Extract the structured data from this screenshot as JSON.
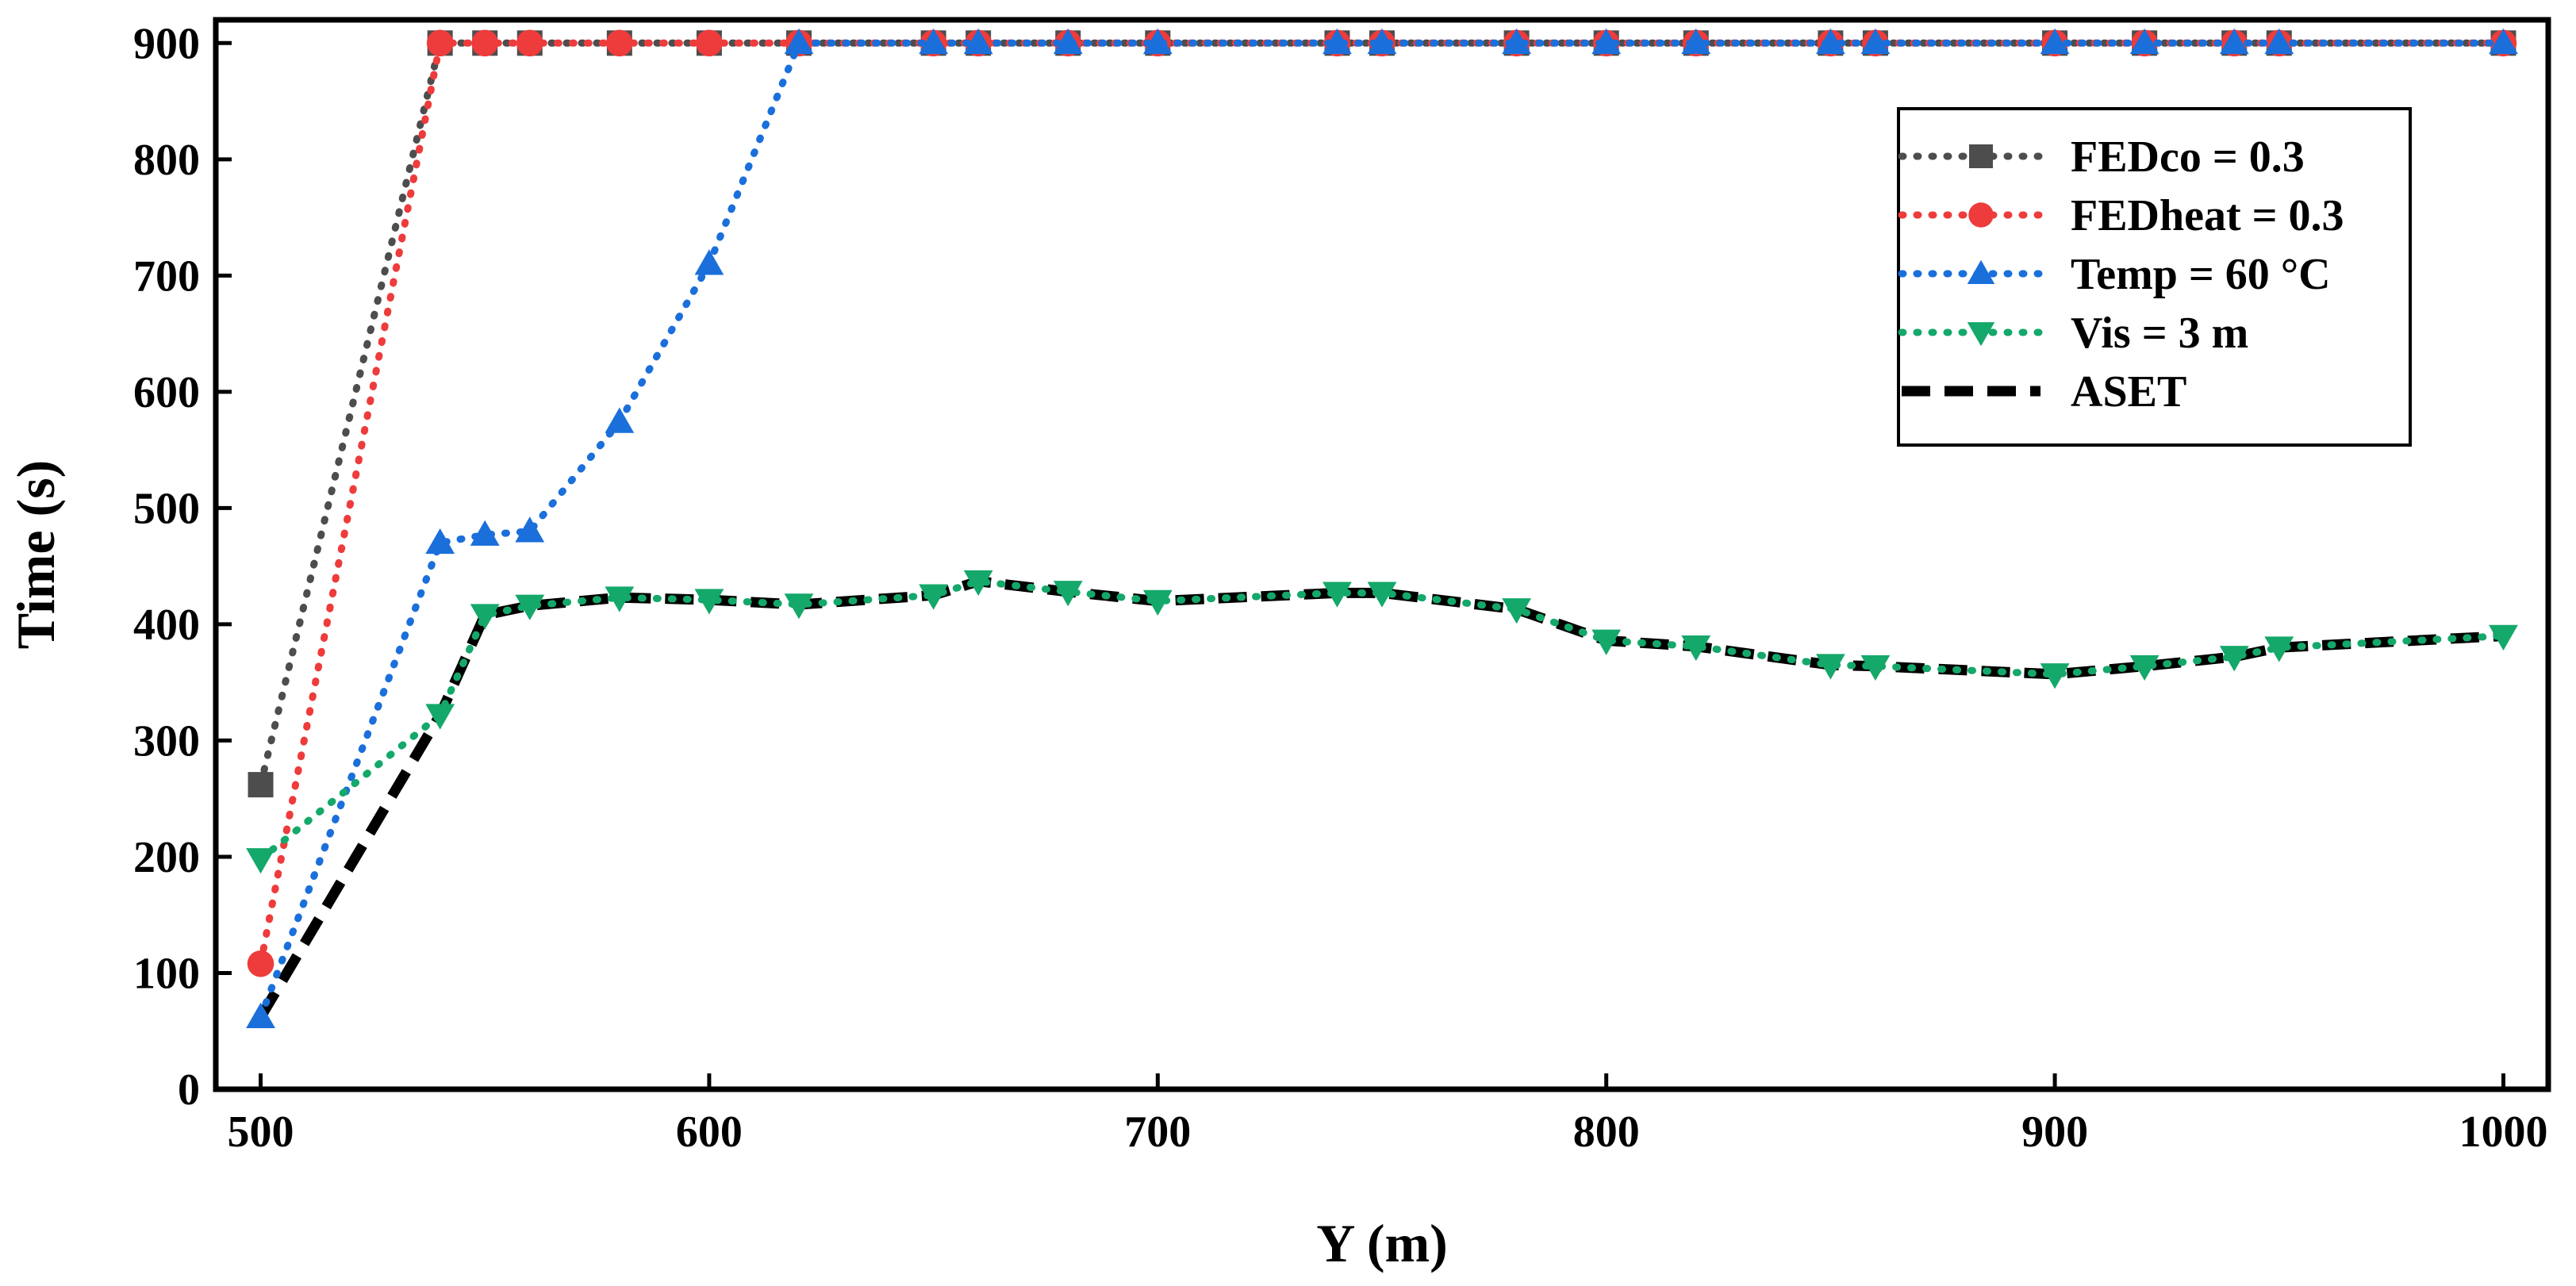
{
  "chart_data": {
    "type": "line",
    "title": "",
    "xlabel": "Y (m)",
    "ylabel": "Time (s)",
    "xlim": [
      490,
      1010
    ],
    "ylim": [
      0,
      920
    ],
    "xticks": [
      500,
      600,
      700,
      800,
      900,
      1000
    ],
    "yticks": [
      0,
      100,
      200,
      300,
      400,
      500,
      600,
      700,
      800,
      900
    ],
    "grid": false,
    "legend_position": "top-right",
    "series": [
      {
        "name": "FEDco = 0.3",
        "color": "#4d4d4d",
        "marker": "square",
        "line": "dotted",
        "x": [
          500,
          540,
          550,
          560,
          580,
          600,
          620,
          650,
          660,
          680,
          700,
          740,
          750,
          780,
          800,
          820,
          850,
          860,
          900,
          920,
          940,
          950,
          1000
        ],
        "y": [
          262,
          900,
          900,
          900,
          900,
          900,
          900,
          900,
          900,
          900,
          900,
          900,
          900,
          900,
          900,
          900,
          900,
          900,
          900,
          900,
          900,
          900,
          900
        ]
      },
      {
        "name": "FEDheat = 0.3",
        "color": "#ee3b3b",
        "marker": "circle",
        "line": "dotted",
        "x": [
          500,
          540,
          550,
          560,
          580,
          600,
          620,
          650,
          660,
          680,
          700,
          740,
          750,
          780,
          800,
          820,
          850,
          860,
          900,
          920,
          940,
          950,
          1000
        ],
        "y": [
          108,
          900,
          900,
          900,
          900,
          900,
          900,
          900,
          900,
          900,
          900,
          900,
          900,
          900,
          900,
          900,
          900,
          900,
          900,
          900,
          900,
          900,
          900
        ]
      },
      {
        "name": "Temp = 60 °C",
        "color": "#1a6fdb",
        "marker": "triangle-up",
        "line": "dotted",
        "x": [
          500,
          540,
          550,
          560,
          580,
          600,
          620,
          650,
          660,
          680,
          700,
          740,
          750,
          780,
          800,
          820,
          850,
          860,
          900,
          920,
          940,
          950,
          1000
        ],
        "y": [
          62,
          470,
          477,
          480,
          574,
          710,
          900,
          900,
          900,
          900,
          900,
          900,
          900,
          900,
          900,
          900,
          900,
          900,
          900,
          900,
          900,
          900,
          900
        ]
      },
      {
        "name": "Vis = 3 m",
        "color": "#14a86a",
        "marker": "triangle-down",
        "line": "dotted",
        "x": [
          500,
          540,
          550,
          560,
          580,
          600,
          620,
          650,
          660,
          680,
          700,
          740,
          750,
          780,
          800,
          820,
          850,
          860,
          900,
          920,
          940,
          950,
          1000
        ],
        "y": [
          198,
          322,
          408,
          416,
          423,
          421,
          417,
          425,
          437,
          428,
          420,
          427,
          427,
          413,
          386,
          381,
          365,
          364,
          357,
          364,
          372,
          380,
          390
        ]
      },
      {
        "name": "ASET",
        "color": "#000000",
        "marker": "none",
        "line": "dashed",
        "x": [
          500,
          540,
          550,
          560,
          580,
          600,
          620,
          650,
          660,
          680,
          700,
          740,
          750,
          780,
          800,
          820,
          850,
          860,
          900,
          920,
          940,
          950,
          1000
        ],
        "y": [
          62,
          322,
          408,
          416,
          423,
          421,
          417,
          425,
          437,
          428,
          420,
          427,
          427,
          413,
          386,
          381,
          365,
          364,
          357,
          364,
          372,
          380,
          390
        ]
      }
    ]
  }
}
